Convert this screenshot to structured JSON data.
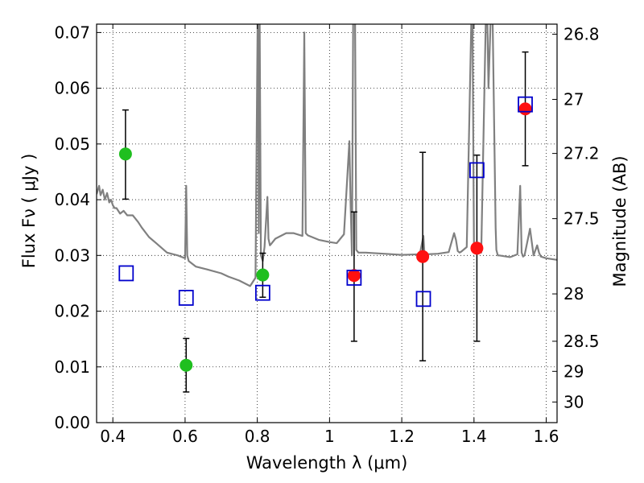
{
  "chart_data": {
    "type": "scatter",
    "xlabel": "Wavelength  λ (μm)",
    "ylabel": "Flux  Fν  ( μJy )",
    "y2label": "Magnitude (AB)",
    "xlim": [
      0.355,
      1.63
    ],
    "ylim": [
      0.0,
      0.0715
    ],
    "grid": true,
    "x_ticks": [
      0.4,
      0.6,
      0.8,
      1.0,
      1.2,
      1.4,
      1.6
    ],
    "x_tick_labels": [
      "0.4",
      "0.6",
      "0.8",
      "1",
      "1.2",
      "1.4",
      "1.6"
    ],
    "y_ticks": [
      0.0,
      0.01,
      0.02,
      0.03,
      0.04,
      0.05,
      0.06,
      0.07
    ],
    "y_tick_labels": [
      "0.00",
      "0.01",
      "0.02",
      "0.03",
      "0.04",
      "0.05",
      "0.06",
      "0.07"
    ],
    "y2_ticks": [
      {
        "label": "26.8",
        "flux": 0.0697
      },
      {
        "label": "27",
        "flux": 0.058
      },
      {
        "label": "27.2",
        "flux": 0.0483
      },
      {
        "label": "27.5",
        "flux": 0.0366
      },
      {
        "label": "28",
        "flux": 0.0231
      },
      {
        "label": "28.5",
        "flux": 0.0146
      },
      {
        "label": "29",
        "flux": 0.0092
      },
      {
        "label": "30",
        "flux": 0.0037
      }
    ],
    "series": [
      {
        "marker": "circle",
        "color": "#1fbf1f",
        "points": [
          {
            "x": 0.435,
            "y": 0.0482,
            "err_low": 0.0401,
            "err_high": 0.0561
          },
          {
            "x": 0.603,
            "y": 0.0103,
            "err_low": 0.0055,
            "err_high": 0.0151
          },
          {
            "x": 0.815,
            "y": 0.0265,
            "err_low": 0.0225,
            "err_high": 0.0304
          }
        ]
      },
      {
        "marker": "circle",
        "color": "#ff1010",
        "points": [
          {
            "x": 1.068,
            "y": 0.0264,
            "err_low": 0.0146,
            "err_high": 0.0378
          },
          {
            "x": 1.258,
            "y": 0.0298,
            "err_low": 0.0111,
            "err_high": 0.0485
          },
          {
            "x": 1.408,
            "y": 0.0313,
            "err_low": 0.0146,
            "err_high": 0.048
          },
          {
            "x": 1.542,
            "y": 0.0563,
            "err_low": 0.0461,
            "err_high": 0.0665
          }
        ]
      },
      {
        "marker": "open-square",
        "color": "#0000cc",
        "points": [
          {
            "x": 0.437,
            "y": 0.0268
          },
          {
            "x": 0.603,
            "y": 0.0224
          },
          {
            "x": 0.815,
            "y": 0.0233
          },
          {
            "x": 1.068,
            "y": 0.026
          },
          {
            "x": 1.26,
            "y": 0.0222
          },
          {
            "x": 1.408,
            "y": 0.0453
          },
          {
            "x": 1.542,
            "y": 0.0571
          }
        ]
      }
    ],
    "spectrum": {
      "color": "#808080",
      "x": [
        0.355,
        0.362,
        0.366,
        0.372,
        0.378,
        0.384,
        0.39,
        0.395,
        0.4,
        0.405,
        0.41,
        0.42,
        0.43,
        0.44,
        0.455,
        0.46,
        0.47,
        0.48,
        0.5,
        0.52,
        0.55,
        0.58,
        0.6,
        0.603,
        0.606,
        0.61,
        0.63,
        0.66,
        0.7,
        0.72,
        0.75,
        0.78,
        0.795,
        0.802,
        0.804,
        0.806,
        0.81,
        0.815,
        0.82,
        0.828,
        0.831,
        0.835,
        0.84,
        0.85,
        0.88,
        0.9,
        0.925,
        0.93,
        0.934,
        0.94,
        0.97,
        1.0,
        1.02,
        1.04,
        1.05,
        1.055,
        1.058,
        1.062,
        1.066,
        1.07,
        1.074,
        1.08,
        1.1,
        1.15,
        1.2,
        1.25,
        1.26,
        1.263,
        1.27,
        1.3,
        1.33,
        1.345,
        1.35,
        1.355,
        1.36,
        1.365,
        1.38,
        1.395,
        1.4,
        1.41,
        1.42,
        1.435,
        1.44,
        1.45,
        1.46,
        1.462,
        1.466,
        1.47,
        1.5,
        1.52,
        1.528,
        1.532,
        1.536,
        1.54,
        1.555,
        1.565,
        1.575,
        1.58,
        1.585,
        1.6,
        1.63
      ],
      "y": [
        0.041,
        0.0425,
        0.0408,
        0.0418,
        0.04,
        0.0412,
        0.0395,
        0.04,
        0.039,
        0.0385,
        0.0385,
        0.0375,
        0.038,
        0.0372,
        0.0372,
        0.0368,
        0.036,
        0.035,
        0.0333,
        0.0322,
        0.0305,
        0.03,
        0.0295,
        0.0425,
        0.03,
        0.029,
        0.028,
        0.0275,
        0.0268,
        0.0262,
        0.0255,
        0.0245,
        0.026,
        0.08,
        0.034,
        0.08,
        0.03,
        0.029,
        0.0315,
        0.0405,
        0.033,
        0.0318,
        0.0322,
        0.033,
        0.034,
        0.034,
        0.0335,
        0.07,
        0.034,
        0.0336,
        0.0328,
        0.0324,
        0.0322,
        0.0338,
        0.045,
        0.0505,
        0.04,
        0.03,
        0.08,
        0.08,
        0.031,
        0.0305,
        0.0305,
        0.0303,
        0.0301,
        0.0302,
        0.0335,
        0.03,
        0.0302,
        0.0303,
        0.0306,
        0.034,
        0.0328,
        0.0308,
        0.0305,
        0.0307,
        0.0315,
        0.08,
        0.0312,
        0.0308,
        0.0305,
        0.08,
        0.06,
        0.08,
        0.035,
        0.031,
        0.03,
        0.03,
        0.0297,
        0.0302,
        0.0425,
        0.0305,
        0.0298,
        0.03,
        0.0348,
        0.03,
        0.0318,
        0.0305,
        0.0298,
        0.0295,
        0.0292
      ]
    }
  }
}
